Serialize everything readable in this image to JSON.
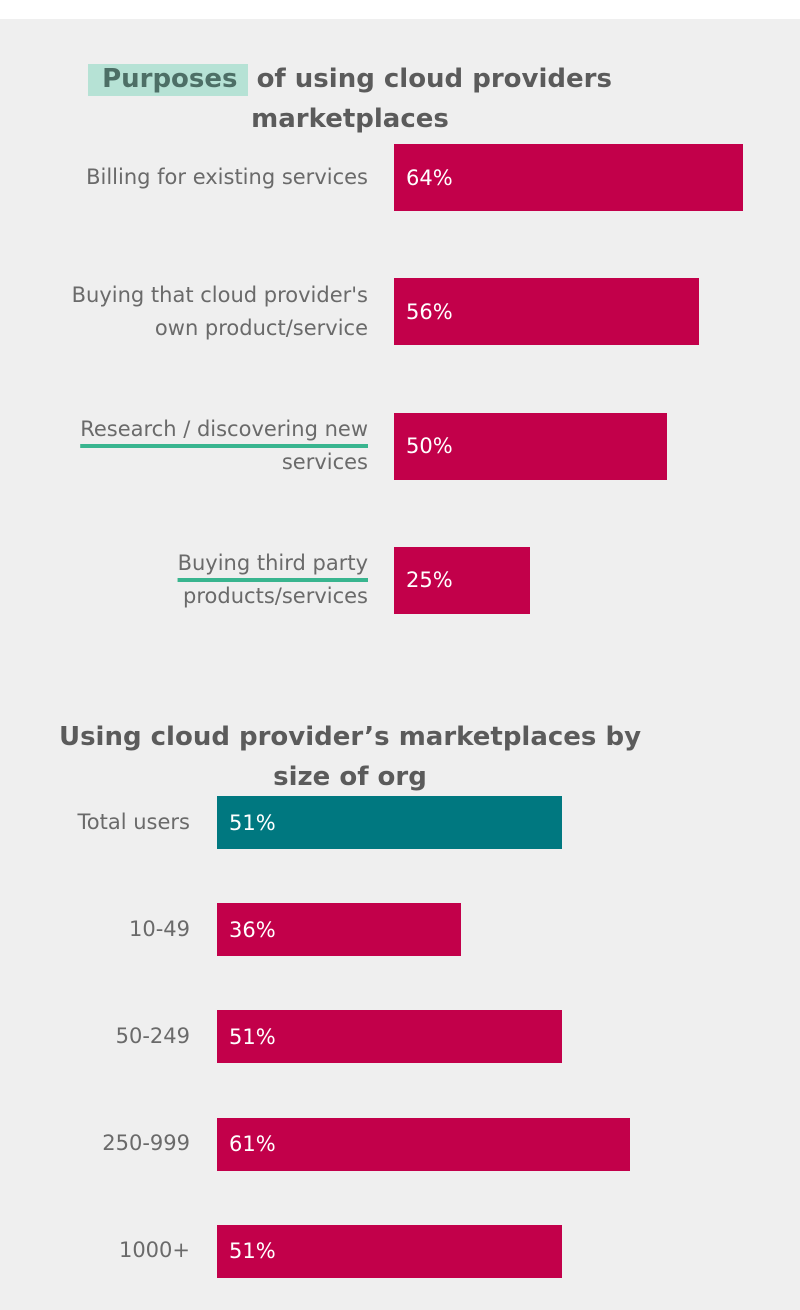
{
  "colors": {
    "bar": "#c2004a",
    "highlight_bar": "#007880",
    "title": "#5b5b5b",
    "label": "#6a6a6a",
    "accent": "#39b58f"
  },
  "chart_data": [
    {
      "type": "bar",
      "orientation": "horizontal",
      "title_highlight": "Purposes",
      "title_rest": " of using cloud providers marketplaces",
      "categories": [
        "Billing for existing services",
        "Buying that cloud provider's own product/service",
        "Research / discovering new services",
        "Buying third party products/services"
      ],
      "category_lines": [
        [
          "Billing for existing services"
        ],
        [
          "Buying that cloud provider's",
          "own product/service"
        ],
        [
          "Research / discovering new",
          "services"
        ],
        [
          "Buying third party",
          "products/services"
        ]
      ],
      "underlined_lines": [
        [],
        [],
        [
          0
        ],
        [
          0
        ]
      ],
      "values": [
        64,
        56,
        50,
        25
      ],
      "labels": [
        "64%",
        "56%",
        "50%",
        "25%"
      ],
      "unit": "%"
    },
    {
      "type": "bar",
      "orientation": "horizontal",
      "title": "Using cloud provider’s marketplaces by size of org",
      "categories": [
        "Total users",
        "10-49",
        "50-249",
        "250-999",
        "1000+"
      ],
      "values": [
        51,
        36,
        51,
        61,
        51
      ],
      "labels": [
        "51%",
        "36%",
        "51%",
        "61%",
        "51%"
      ],
      "highlight_index": 0,
      "unit": "%"
    }
  ]
}
